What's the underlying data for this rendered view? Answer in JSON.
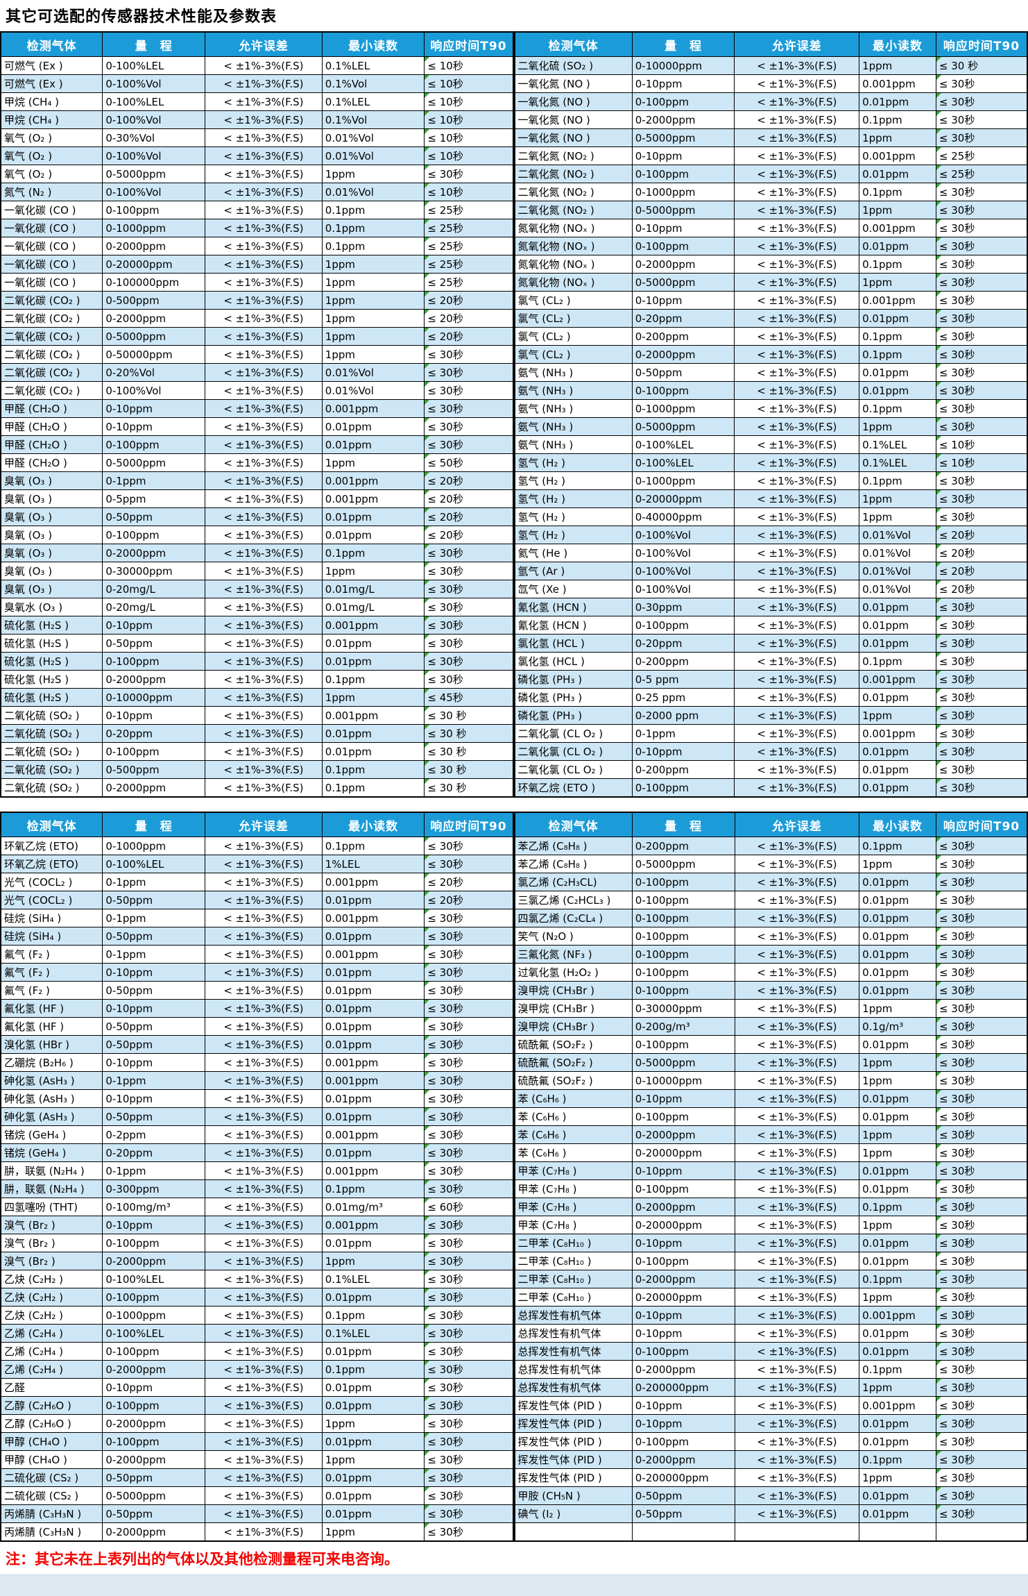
{
  "title": "其它可选配的传感器技术性能及参数表",
  "note": "注：其它未在上表列出的气体以及其他检测量程可来电咨询。",
  "columns": [
    "检测气体",
    "量　程",
    "允许误差",
    "最小读数",
    "响应时间T90"
  ],
  "table1": {
    "left": [
      [
        "可燃气 (Ex )",
        "0-100%LEL",
        "< ±1%-3%(F.S)",
        "0.1%LEL",
        "≤ 10秒"
      ],
      [
        "可燃气 (Ex )",
        "0-100%Vol",
        "< ±1%-3%(F.S)",
        "0.1%Vol",
        "≤ 10秒"
      ],
      [
        "甲烷 (CH₄ )",
        "0-100%LEL",
        "< ±1%-3%(F.S)",
        "0.1%LEL",
        "≤ 10秒"
      ],
      [
        "甲烷 (CH₄ )",
        "0-100%Vol",
        "< ±1%-3%(F.S)",
        "0.1%Vol",
        "≤ 10秒"
      ],
      [
        "氧气 (O₂ )",
        "0-30%Vol",
        "< ±1%-3%(F.S)",
        "0.01%Vol",
        "≤ 10秒"
      ],
      [
        "氧气 (O₂ )",
        "0-100%Vol",
        "< ±1%-3%(F.S)",
        "0.01%Vol",
        "≤ 10秒"
      ],
      [
        "氧气 (O₂ )",
        "0-5000ppm",
        "< ±1%-3%(F.S)",
        "1ppm",
        "≤ 30秒"
      ],
      [
        "氮气 (N₂ )",
        "0-100%Vol",
        "< ±1%-3%(F.S)",
        "0.01%Vol",
        "≤ 10秒"
      ],
      [
        "一氧化碳 (CO )",
        "0-100ppm",
        "< ±1%-3%(F.S)",
        "0.1ppm",
        "≤ 25秒"
      ],
      [
        "一氧化碳 (CO )",
        "0-1000ppm",
        "< ±1%-3%(F.S)",
        "0.1ppm",
        "≤ 25秒"
      ],
      [
        "一氧化碳 (CO )",
        "0-2000ppm",
        "< ±1%-3%(F.S)",
        "0.1ppm",
        "≤ 25秒"
      ],
      [
        "一氧化碳 (CO )",
        "0-20000ppm",
        "< ±1%-3%(F.S)",
        "1ppm",
        "≤ 25秒"
      ],
      [
        "一氧化碳 (CO )",
        "0-100000ppm",
        "< ±1%-3%(F.S)",
        "1ppm",
        "≤ 25秒"
      ],
      [
        "二氧化碳 (CO₂ )",
        "0-500ppm",
        "< ±1%-3%(F.S)",
        "1ppm",
        "≤ 20秒"
      ],
      [
        "二氧化碳 (CO₂ )",
        "0-2000ppm",
        "< ±1%-3%(F.S)",
        "1ppm",
        "≤ 20秒"
      ],
      [
        "二氧化碳 (CO₂ )",
        "0-5000ppm",
        "< ±1%-3%(F.S)",
        "1ppm",
        "≤ 20秒"
      ],
      [
        "二氧化碳 (CO₂ )",
        "0-50000ppm",
        "< ±1%-3%(F.S)",
        "1ppm",
        "≤ 30秒"
      ],
      [
        "二氧化碳 (CO₂ )",
        "0-20%Vol",
        "< ±1%-3%(F.S)",
        "0.01%Vol",
        "≤ 30秒"
      ],
      [
        "二氧化碳 (CO₂ )",
        "0-100%Vol",
        "< ±1%-3%(F.S)",
        "0.01%Vol",
        "≤ 30秒"
      ],
      [
        "甲醛 (CH₂O )",
        "0-10ppm",
        "< ±1%-3%(F.S)",
        "0.001ppm",
        "≤ 30秒"
      ],
      [
        "甲醛 (CH₂O )",
        "0-10ppm",
        "< ±1%-3%(F.S)",
        "0.01ppm",
        "≤ 30秒"
      ],
      [
        "甲醛 (CH₂O )",
        "0-100ppm",
        "< ±1%-3%(F.S)",
        "0.01ppm",
        "≤ 30秒"
      ],
      [
        "甲醛 (CH₂O )",
        "0-5000ppm",
        "< ±1%-3%(F.S)",
        "1ppm",
        "≤ 50秒"
      ],
      [
        "臭氧 (O₃ )",
        "0-1ppm",
        "< ±1%-3%(F.S)",
        "0.001ppm",
        "≤ 20秒"
      ],
      [
        "臭氧 (O₃ )",
        "0-5ppm",
        "< ±1%-3%(F.S)",
        "0.001ppm",
        "≤ 20秒"
      ],
      [
        "臭氧 (O₃ )",
        "0-50ppm",
        "< ±1%-3%(F.S)",
        "0.01ppm",
        "≤ 20秒"
      ],
      [
        "臭氧 (O₃ )",
        "0-100ppm",
        "< ±1%-3%(F.S)",
        "0.01ppm",
        "≤ 20秒"
      ],
      [
        "臭氧 (O₃ )",
        "0-2000ppm",
        "< ±1%-3%(F.S)",
        "0.1ppm",
        "≤ 30秒"
      ],
      [
        "臭氧 (O₃ )",
        "0-30000ppm",
        "< ±1%-3%(F.S)",
        "1ppm",
        "≤ 30秒"
      ],
      [
        "臭氧 (O₃ )",
        "0-20mg/L",
        "< ±1%-3%(F.S)",
        "0.01mg/L",
        "≤ 30秒"
      ],
      [
        "臭氧水 (O₃ )",
        "0-20mg/L",
        "< ±1%-3%(F.S)",
        "0.01mg/L",
        "≤ 30秒"
      ],
      [
        "硫化氢 (H₂S )",
        "0-10ppm",
        "< ±1%-3%(F.S)",
        "0.001ppm",
        "≤ 30秒"
      ],
      [
        "硫化氢 (H₂S )",
        "0-50ppm",
        "< ±1%-3%(F.S)",
        "0.01ppm",
        "≤ 30秒"
      ],
      [
        "硫化氢 (H₂S )",
        "0-100ppm",
        "< ±1%-3%(F.S)",
        "0.01ppm",
        "≤ 30秒"
      ],
      [
        "硫化氢 (H₂S )",
        "0-2000ppm",
        "< ±1%-3%(F.S)",
        "0.1ppm",
        "≤ 30秒"
      ],
      [
        "硫化氢 (H₂S )",
        "0-10000ppm",
        "< ±1%-3%(F.S)",
        "1ppm",
        "≤ 45秒"
      ],
      [
        "二氧化硫 (SO₂ )",
        "0-10ppm",
        "< ±1%-3%(F.S)",
        "0.001ppm",
        "≤ 30 秒"
      ],
      [
        "二氧化硫 (SO₂ )",
        "0-20ppm",
        "< ±1%-3%(F.S)",
        "0.01ppm",
        "≤ 30 秒"
      ],
      [
        "二氧化硫 (SO₂ )",
        "0-100ppm",
        "< ±1%-3%(F.S)",
        "0.01ppm",
        "≤ 30 秒"
      ],
      [
        "二氧化硫 (SO₂ )",
        "0-500ppm",
        "< ±1%-3%(F.S)",
        "0.1ppm",
        "≤ 30 秒"
      ],
      [
        "二氧化硫 (SO₂ )",
        "0-2000ppm",
        "< ±1%-3%(F.S)",
        "0.1ppm",
        "≤ 30 秒"
      ]
    ],
    "right": [
      [
        "二氧化硫 (SO₂ )",
        "0-10000ppm",
        "< ±1%-3%(F.S)",
        "1ppm",
        "≤ 30 秒"
      ],
      [
        "一氧化氮 (NO )",
        "0-10ppm",
        "< ±1%-3%(F.S)",
        "0.001ppm",
        "≤ 30秒"
      ],
      [
        "一氧化氮 (NO )",
        "0-100ppm",
        "< ±1%-3%(F.S)",
        "0.01ppm",
        "≤ 30秒"
      ],
      [
        "一氧化氮 (NO )",
        "0-2000ppm",
        "< ±1%-3%(F.S)",
        "0.1ppm",
        "≤ 30秒"
      ],
      [
        "一氧化氮 (NO )",
        "0-5000ppm",
        "< ±1%-3%(F.S)",
        "1ppm",
        "≤ 30秒"
      ],
      [
        "二氧化氮 (NO₂ )",
        "0-10ppm",
        "< ±1%-3%(F.S)",
        "0.001ppm",
        "≤ 25秒"
      ],
      [
        "二氧化氮 (NO₂ )",
        "0-100ppm",
        "< ±1%-3%(F.S)",
        "0.01ppm",
        "≤ 25秒"
      ],
      [
        "二氧化氮 (NO₂ )",
        "0-1000ppm",
        "< ±1%-3%(F.S)",
        "0.1ppm",
        "≤ 30秒"
      ],
      [
        "二氧化氮 (NO₂ )",
        "0-5000ppm",
        "< ±1%-3%(F.S)",
        "1ppm",
        "≤ 30秒"
      ],
      [
        "氮氧化物 (NOₓ )",
        "0-10ppm",
        "< ±1%-3%(F.S)",
        "0.001ppm",
        "≤ 30秒"
      ],
      [
        "氮氧化物 (NOₓ )",
        "0-100ppm",
        "< ±1%-3%(F.S)",
        "0.01ppm",
        "≤ 30秒"
      ],
      [
        "氮氧化物 (NOₓ )",
        "0-2000ppm",
        "< ±1%-3%(F.S)",
        "0.1ppm",
        "≤ 30秒"
      ],
      [
        "氮氧化物 (NOₓ )",
        "0-5000ppm",
        "< ±1%-3%(F.S)",
        "1ppm",
        "≤ 30秒"
      ],
      [
        "氯气 (CL₂ )",
        "0-10ppm",
        "< ±1%-3%(F.S)",
        "0.001ppm",
        "≤ 30秒"
      ],
      [
        "氯气 (CL₂ )",
        "0-20ppm",
        "< ±1%-3%(F.S)",
        "0.01ppm",
        "≤ 30秒"
      ],
      [
        "氯气 (CL₂ )",
        "0-200ppm",
        "< ±1%-3%(F.S)",
        "0.1ppm",
        "≤ 30秒"
      ],
      [
        "氯气 (CL₂ )",
        "0-2000ppm",
        "< ±1%-3%(F.S)",
        "0.1ppm",
        "≤ 30秒"
      ],
      [
        "氨气 (NH₃ )",
        "0-50ppm",
        "< ±1%-3%(F.S)",
        "0.01ppm",
        "≤ 30秒"
      ],
      [
        "氨气 (NH₃ )",
        "0-100ppm",
        "< ±1%-3%(F.S)",
        "0.01ppm",
        "≤ 30秒"
      ],
      [
        "氨气 (NH₃ )",
        "0-1000ppm",
        "< ±1%-3%(F.S)",
        "0.1ppm",
        "≤ 30秒"
      ],
      [
        "氨气 (NH₃ )",
        "0-5000ppm",
        "< ±1%-3%(F.S)",
        "1ppm",
        "≤ 30秒"
      ],
      [
        "氨气 (NH₃ )",
        "0-100%LEL",
        "< ±1%-3%(F.S)",
        "0.1%LEL",
        "≤ 10秒"
      ],
      [
        "氢气 (H₂ )",
        "0-100%LEL",
        "< ±1%-3%(F.S)",
        "0.1%LEL",
        "≤ 10秒"
      ],
      [
        "氢气 (H₂ )",
        "0-1000ppm",
        "< ±1%-3%(F.S)",
        "0.1ppm",
        "≤ 30秒"
      ],
      [
        "氢气 (H₂ )",
        "0-20000ppm",
        "< ±1%-3%(F.S)",
        "1ppm",
        "≤ 30秒"
      ],
      [
        "氢气 (H₂ )",
        "0-40000ppm",
        "< ±1%-3%(F.S)",
        "1ppm",
        "≤ 30秒"
      ],
      [
        "氢气 (H₂ )",
        "0-100%Vol",
        "< ±1%-3%(F.S)",
        "0.01%Vol",
        "≤ 20秒"
      ],
      [
        "氦气 (He )",
        "0-100%Vol",
        "< ±1%-3%(F.S)",
        "0.01%Vol",
        "≤ 20秒"
      ],
      [
        "氩气 (Ar )",
        "0-100%Vol",
        "< ±1%-3%(F.S)",
        "0.01%Vol",
        "≤ 20秒"
      ],
      [
        "氙气 (Xe )",
        "0-100%Vol",
        "< ±1%-3%(F.S)",
        "0.01%Vol",
        "≤ 20秒"
      ],
      [
        "氰化氢 (HCN )",
        "0-30ppm",
        "< ±1%-3%(F.S)",
        "0.01ppm",
        "≤ 30秒"
      ],
      [
        "氰化氢 (HCN )",
        "0-100ppm",
        "< ±1%-3%(F.S)",
        "0.01ppm",
        "≤ 30秒"
      ],
      [
        "氯化氢 (HCL )",
        "0-20ppm",
        "< ±1%-3%(F.S)",
        "0.01ppm",
        "≤ 30秒"
      ],
      [
        "氯化氢 (HCL )",
        "0-200ppm",
        "< ±1%-3%(F.S)",
        "0.1ppm",
        "≤ 30秒"
      ],
      [
        "磷化氢 (PH₃ )",
        "0-5 ppm",
        "< ±1%-3%(F.S)",
        "0.001ppm",
        "≤ 30秒"
      ],
      [
        "磷化氢 (PH₃ )",
        "0-25 ppm",
        "< ±1%-3%(F.S)",
        "0.01ppm",
        "≤ 30秒"
      ],
      [
        "磷化氢 (PH₃ )",
        "0-2000 ppm",
        "< ±1%-3%(F.S)",
        "1ppm",
        "≤ 30秒"
      ],
      [
        "二氧化氯 (CL O₂ )",
        "0-1ppm",
        "< ±1%-3%(F.S)",
        "0.001ppm",
        "≤ 30秒"
      ],
      [
        "二氧化氯 (CL O₂ )",
        "0-10ppm",
        "< ±1%-3%(F.S)",
        "0.01ppm",
        "≤ 30秒"
      ],
      [
        "二氧化氯 (CL O₂ )",
        "0-200ppm",
        "< ±1%-3%(F.S)",
        "0.01ppm",
        "≤ 30秒"
      ],
      [
        "环氧乙烷 (ETO )",
        "0-100ppm",
        "< ±1%-3%(F.S)",
        "0.01ppm",
        "≤ 30秒"
      ]
    ]
  },
  "table2": {
    "left": [
      [
        "环氧乙烷 (ETO)",
        "0-1000ppm",
        "< ±1%-3%(F.S)",
        "0.1ppm",
        "≤ 30秒"
      ],
      [
        "环氧乙烷 (ETO)",
        "0-100%LEL",
        "< ±1%-3%(F.S)",
        "1%LEL",
        "≤ 30秒"
      ],
      [
        "光气 (COCL₂ )",
        "0-1ppm",
        "< ±1%-3%(F.S)",
        "0.001ppm",
        "≤ 20秒"
      ],
      [
        "光气 (COCL₂ )",
        "0-50ppm",
        "< ±1%-3%(F.S)",
        "0.01ppm",
        "≤ 20秒"
      ],
      [
        "硅烷 (SiH₄ )",
        "0-1ppm",
        "< ±1%-3%(F.S)",
        "0.001ppm",
        "≤ 30秒"
      ],
      [
        "硅烷 (SiH₄ )",
        "0-50ppm",
        "< ±1%-3%(F.S)",
        "0.01ppm",
        "≤ 30秒"
      ],
      [
        "氟气 (F₂ )",
        "0-1ppm",
        "< ±1%-3%(F.S)",
        "0.001ppm",
        "≤ 30秒"
      ],
      [
        "氟气 (F₂ )",
        "0-10ppm",
        "< ±1%-3%(F.S)",
        "0.01ppm",
        "≤ 30秒"
      ],
      [
        "氟气 (F₂ )",
        "0-50ppm",
        "< ±1%-3%(F.S)",
        "0.01ppm",
        "≤ 30秒"
      ],
      [
        "氟化氢 (HF )",
        "0-10ppm",
        "< ±1%-3%(F.S)",
        "0.01ppm",
        "≤ 30秒"
      ],
      [
        "氟化氢 (HF )",
        "0-50ppm",
        "< ±1%-3%(F.S)",
        "0.01ppm",
        "≤ 30秒"
      ],
      [
        "溴化氢 (HBr )",
        "0-50ppm",
        "< ±1%-3%(F.S)",
        "0.01ppm",
        "≤ 30秒"
      ],
      [
        "乙硼烷 (B₂H₆ )",
        "0-10ppm",
        "< ±1%-3%(F.S)",
        "0.001ppm",
        "≤ 30秒"
      ],
      [
        "砷化氢 (AsH₃ )",
        "0-1ppm",
        "< ±1%-3%(F.S)",
        "0.001ppm",
        "≤ 30秒"
      ],
      [
        "砷化氢 (AsH₃ )",
        "0-10ppm",
        "< ±1%-3%(F.S)",
        "0.01ppm",
        "≤ 30秒"
      ],
      [
        "砷化氢 (AsH₃ )",
        "0-50ppm",
        "< ±1%-3%(F.S)",
        "0.01ppm",
        "≤ 30秒"
      ],
      [
        "锗烷 (GeH₄ )",
        "0-2ppm",
        "< ±1%-3%(F.S)",
        "0.001ppm",
        "≤ 30秒"
      ],
      [
        "锗烷 (GeH₄ )",
        "0-20ppm",
        "< ±1%-3%(F.S)",
        "0.01ppm",
        "≤ 30秒"
      ],
      [
        "肼，联氨 (N₂H₄ )",
        "0-1ppm",
        "< ±1%-3%(F.S)",
        "0.001ppm",
        "≤ 30秒"
      ],
      [
        "肼，联氨 (N₂H₄ )",
        "0-300ppm",
        "< ±1%-3%(F.S)",
        "0.1ppm",
        "≤ 30秒"
      ],
      [
        "四氢噻吩 (THT)",
        "0-100mg/m³",
        "< ±1%-3%(F.S)",
        "0.01mg/m³",
        "≤ 60秒"
      ],
      [
        "溴气 (Br₂ )",
        "0-10ppm",
        "< ±1%-3%(F.S)",
        "0.001ppm",
        "≤ 30秒"
      ],
      [
        "溴气 (Br₂ )",
        "0-100ppm",
        "< ±1%-3%(F.S)",
        "0.01ppm",
        "≤ 30秒"
      ],
      [
        "溴气 (Br₂ )",
        "0-2000ppm",
        "< ±1%-3%(F.S)",
        "1ppm",
        "≤ 30秒"
      ],
      [
        "乙炔 (C₂H₂ )",
        "0-100%LEL",
        "< ±1%-3%(F.S)",
        "0.1%LEL",
        "≤ 30秒"
      ],
      [
        "乙炔 (C₂H₂ )",
        "0-100ppm",
        "< ±1%-3%(F.S)",
        "0.01ppm",
        "≤ 30秒"
      ],
      [
        "乙炔 (C₂H₂ )",
        "0-1000ppm",
        "< ±1%-3%(F.S)",
        "0.1ppm",
        "≤ 30秒"
      ],
      [
        "乙烯 (C₂H₄ )",
        "0-100%LEL",
        "< ±1%-3%(F.S)",
        "0.1%LEL",
        "≤ 30秒"
      ],
      [
        "乙烯 (C₂H₄ )",
        "0-100ppm",
        "< ±1%-3%(F.S)",
        "0.01ppm",
        "≤ 30秒"
      ],
      [
        "乙烯 (C₂H₄ )",
        "0-2000ppm",
        "< ±1%-3%(F.S)",
        "0.1ppm",
        "≤ 30秒"
      ],
      [
        "乙醛",
        "0-10ppm",
        "< ±1%-3%(F.S)",
        "0.01ppm",
        "≤ 30秒"
      ],
      [
        "乙醇 (C₂H₆O )",
        "0-100ppm",
        "< ±1%-3%(F.S)",
        "0.01ppm",
        "≤ 30秒"
      ],
      [
        "乙醇 (C₂H₆O )",
        "0-2000ppm",
        "< ±1%-3%(F.S)",
        "1ppm",
        "≤ 30秒"
      ],
      [
        "甲醇 (CH₄O )",
        "0-100ppm",
        "< ±1%-3%(F.S)",
        "0.01ppm",
        "≤ 30秒"
      ],
      [
        "甲醇 (CH₄O )",
        "0-2000ppm",
        "< ±1%-3%(F.S)",
        "1ppm",
        "≤ 30秒"
      ],
      [
        "二硫化碳 (CS₂ )",
        "0-50ppm",
        "< ±1%-3%(F.S)",
        "0.01ppm",
        "≤ 30秒"
      ],
      [
        "二硫化碳 (CS₂ )",
        "0-5000ppm",
        "< ±1%-3%(F.S)",
        "0.01ppm",
        "≤ 30秒"
      ],
      [
        "丙烯腈 (C₃H₃N )",
        "0-50ppm",
        "< ±1%-3%(F.S)",
        "0.01ppm",
        "≤ 30秒"
      ],
      [
        "丙烯腈 (C₃H₃N )",
        "0-2000ppm",
        "< ±1%-3%(F.S)",
        "1ppm",
        "≤ 30秒"
      ]
    ],
    "right": [
      [
        "苯乙烯 (C₈H₈ )",
        "0-200ppm",
        "< ±1%-3%(F.S)",
        "0.1ppm",
        "≤ 30秒"
      ],
      [
        "苯乙烯 (C₈H₈ )",
        "0-5000ppm",
        "< ±1%-3%(F.S)",
        "1ppm",
        "≤ 30秒"
      ],
      [
        "氯乙烯 (C₂H₃CL)",
        "0-100ppm",
        "< ±1%-3%(F.S)",
        "0.01ppm",
        "≤ 30秒"
      ],
      [
        "三氯乙烯 (C₂HCL₃ )",
        "0-100ppm",
        "< ±1%-3%(F.S)",
        "0.01ppm",
        "≤ 30秒"
      ],
      [
        "四氯乙烯 (C₂CL₄ )",
        "0-100ppm",
        "< ±1%-3%(F.S)",
        "0.01ppm",
        "≤ 30秒"
      ],
      [
        "笑气 (N₂O )",
        "0-100ppm",
        "< ±1%-3%(F.S)",
        "0.01ppm",
        "≤ 30秒"
      ],
      [
        "三氟化氮 (NF₃ )",
        "0-100ppm",
        "< ±1%-3%(F.S)",
        "0.01ppm",
        "≤ 30秒"
      ],
      [
        "过氧化氢 (H₂O₂ )",
        "0-100ppm",
        "< ±1%-3%(F.S)",
        "0.01ppm",
        "≤ 30秒"
      ],
      [
        "溴甲烷 (CH₃Br )",
        "0-100ppm",
        "< ±1%-3%(F.S)",
        "0.01ppm",
        "≤ 30秒"
      ],
      [
        "溴甲烷 (CH₃Br )",
        "0-30000ppm",
        "< ±1%-3%(F.S)",
        "1ppm",
        "≤ 30秒"
      ],
      [
        "溴甲烷 (CH₃Br )",
        "0-200g/m³",
        "< ±1%-3%(F.S)",
        "0.1g/m³",
        "≤ 30秒"
      ],
      [
        "硫酰氟 (SO₂F₂ )",
        "0-100ppm",
        "< ±1%-3%(F.S)",
        "0.01ppm",
        "≤ 30秒"
      ],
      [
        "硫酰氟 (SO₂F₂ )",
        "0-5000ppm",
        "< ±1%-3%(F.S)",
        "1ppm",
        "≤ 30秒"
      ],
      [
        "硫酰氟 (SO₂F₂ )",
        "0-10000ppm",
        "< ±1%-3%(F.S)",
        "1ppm",
        "≤ 30秒"
      ],
      [
        "苯 (C₆H₆ )",
        "0-10ppm",
        "< ±1%-3%(F.S)",
        "0.01ppm",
        "≤ 30秒"
      ],
      [
        "苯 (C₆H₆ )",
        "0-100ppm",
        "< ±1%-3%(F.S)",
        "0.01ppm",
        "≤ 30秒"
      ],
      [
        "苯 (C₆H₆ )",
        "0-2000ppm",
        "< ±1%-3%(F.S)",
        "1ppm",
        "≤ 30秒"
      ],
      [
        "苯 (C₆H₆ )",
        "0-20000ppm",
        "< ±1%-3%(F.S)",
        "1ppm",
        "≤ 30秒"
      ],
      [
        "甲苯 (C₇H₈ )",
        "0-10ppm",
        "< ±1%-3%(F.S)",
        "0.01ppm",
        "≤ 30秒"
      ],
      [
        "甲苯 (C₇H₈ )",
        "0-100ppm",
        "< ±1%-3%(F.S)",
        "0.01ppm",
        "≤ 30秒"
      ],
      [
        "甲苯 (C₇H₈ )",
        "0-2000ppm",
        "< ±1%-3%(F.S)",
        "0.1ppm",
        "≤ 30秒"
      ],
      [
        "甲苯 (C₇H₈ )",
        "0-20000ppm",
        "< ±1%-3%(F.S)",
        "1ppm",
        "≤ 30秒"
      ],
      [
        "二甲苯 (C₈H₁₀ )",
        "0-10ppm",
        "< ±1%-3%(F.S)",
        "0.01ppm",
        "≤ 30秒"
      ],
      [
        "二甲苯 (C₈H₁₀ )",
        "0-100ppm",
        "< ±1%-3%(F.S)",
        "0.01ppm",
        "≤ 30秒"
      ],
      [
        "二甲苯 (C₈H₁₀ )",
        "0-2000ppm",
        "< ±1%-3%(F.S)",
        "0.1ppm",
        "≤ 30秒"
      ],
      [
        "二甲苯 (C₈H₁₀ )",
        "0-20000ppm",
        "< ±1%-3%(F.S)",
        "1ppm",
        "≤ 30秒"
      ],
      [
        "总挥发性有机气体",
        "0-10ppm",
        "< ±1%-3%(F.S)",
        "0.001ppm",
        "≤ 30秒"
      ],
      [
        "总挥发性有机气体",
        "0-10ppm",
        "< ±1%-3%(F.S)",
        "0.01ppm",
        "≤ 30秒"
      ],
      [
        "总挥发性有机气体",
        "0-100ppm",
        "< ±1%-3%(F.S)",
        "0.01ppm",
        "≤ 30秒"
      ],
      [
        "总挥发性有机气体",
        "0-2000ppm",
        "< ±1%-3%(F.S)",
        "0.1ppm",
        "≤ 30秒"
      ],
      [
        "总挥发性有机气体",
        "0-200000ppm",
        "< ±1%-3%(F.S)",
        "1ppm",
        "≤ 30秒"
      ],
      [
        "挥发性气体 (PID )",
        "0-10ppm",
        "< ±1%-3%(F.S)",
        "0.001ppm",
        "≤ 30秒"
      ],
      [
        "挥发性气体 (PID )",
        "0-10ppm",
        "< ±1%-3%(F.S)",
        "0.01ppm",
        "≤ 30秒"
      ],
      [
        "挥发性气体 (PID )",
        "0-100ppm",
        "< ±1%-3%(F.S)",
        "0.01ppm",
        "≤ 30秒"
      ],
      [
        "挥发性气体 (PID )",
        "0-2000ppm",
        "< ±1%-3%(F.S)",
        "0.1ppm",
        "≤ 30秒"
      ],
      [
        "挥发性气体 (PID )",
        "0-200000ppm",
        "< ±1%-3%(F.S)",
        "1ppm",
        "≤ 30秒"
      ],
      [
        "甲胺 (CH₅N )",
        "0-50ppm",
        "< ±1%-3%(F.S)",
        "0.01ppm",
        "≤ 30秒"
      ],
      [
        "碘气 (I₂ )",
        "0-50ppm",
        "< ±1%-3%(F.S)",
        "0.01ppm",
        "≤ 30秒"
      ],
      [
        "",
        "",
        "",
        "",
        ""
      ]
    ]
  }
}
